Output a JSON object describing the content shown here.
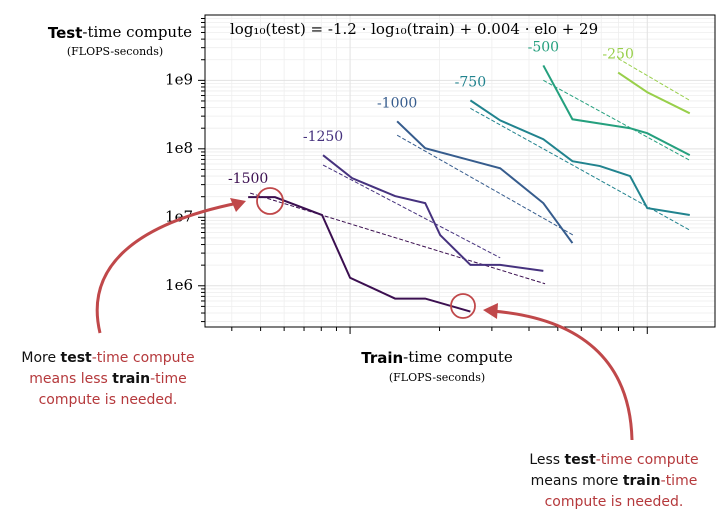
{
  "chart_data": {
    "type": "line",
    "title": "log₁₀(test) = -1.2 · log₁₀(train) + 0.004 · elo + 29",
    "x_label": [
      {
        "text": "Train",
        "style": "bold"
      },
      {
        "text": "-time compute",
        "style": "serif"
      }
    ],
    "x_unit": "(FLOPS-seconds)",
    "y_label": [
      {
        "text": "Test",
        "style": "bold"
      },
      {
        "text": "-time compute",
        "style": "serif"
      }
    ],
    "y_unit": "(FLOPS-seconds)",
    "xscale": "log",
    "yscale": "log",
    "grid": true,
    "xlim": [
      0.325,
      16.9
    ],
    "xticks": [
      1,
      10
    ],
    "ylim": [
      250000,
      9000000000
    ],
    "yticks": [
      {
        "value": 1000000,
        "label": "1e6"
      },
      {
        "value": 10000000,
        "label": "1e7"
      },
      {
        "value": 100000000,
        "label": "1e8"
      },
      {
        "value": 1000000000,
        "label": "1e9"
      }
    ],
    "series": [
      {
        "name": "-1500",
        "color": "#3b0f50",
        "x": [
          0.454,
          0.559,
          0.805,
          1,
          1.417,
          1.79,
          2.54
        ],
        "values": [
          19700000,
          19700000,
          10800000,
          1310000,
          650000,
          650000,
          420000
        ],
        "fit_x": [
          0.461,
          4.53
        ],
        "fit_values": [
          22600000,
          1070000
        ]
      },
      {
        "name": "-1250",
        "color": "#46327e",
        "x": [
          0.811,
          1.016,
          1.417,
          1.79,
          2.01,
          2.54,
          3.2,
          4.47
        ],
        "values": [
          80700000,
          37300000,
          20400000,
          16100000,
          5500000,
          2020000,
          2020000,
          1650000
        ],
        "fit_x": [
          0.811,
          3.2
        ],
        "fit_values": [
          58000000,
          2560000
        ]
      },
      {
        "name": "-1000",
        "color": "#365c8d",
        "x": [
          1.44,
          1.79,
          2.54,
          3.2,
          4.47,
          5.6
        ],
        "values": [
          252000000,
          102000000,
          68000000,
          52000000,
          16100000,
          4200000
        ],
        "fit_x": [
          1.44,
          5.63
        ],
        "fit_values": [
          158000000,
          5500000
        ]
      },
      {
        "name": "-750",
        "color": "#21838e",
        "x": [
          2.54,
          3.2,
          4.47,
          5.6,
          6.93,
          8.75,
          10,
          13.9
        ],
        "values": [
          510000000,
          260000000,
          138000000,
          66000000,
          56000000,
          40000000,
          13600000,
          10800000
        ],
        "fit_x": [
          2.54,
          13.9
        ],
        "fit_values": [
          390000000,
          6500000
        ]
      },
      {
        "name": "-500",
        "color": "#25a07e",
        "x": [
          4.47,
          5.6,
          8.75,
          10,
          13.9
        ],
        "values": [
          1650000000,
          270000000,
          200000000,
          169000000,
          81000000
        ],
        "fit_x": [
          4.47,
          13.9
        ],
        "fit_values": [
          1000000000,
          68000000
        ]
      },
      {
        "name": "-250",
        "color": "#98cf4a",
        "x": [
          7.98,
          10,
          13.9
        ],
        "values": [
          1300000000,
          670000000,
          330000000
        ],
        "fit_x": [
          7.98,
          13.9
        ],
        "fit_values": [
          2080000000,
          510000000
        ]
      }
    ],
    "annotations": [
      {
        "lines": [
          [
            {
              "text": "More ",
              "style": "plain"
            },
            {
              "text": "test",
              "style": "bold"
            },
            {
              "text": "-time compute",
              "style": "red"
            }
          ],
          [
            {
              "text": "means less ",
              "style": "red"
            },
            {
              "text": "train",
              "style": "bold"
            },
            {
              "text": "-time",
              "style": "red"
            }
          ],
          [
            {
              "text": "compute is needed.",
              "style": "red"
            }
          ]
        ]
      },
      {
        "lines": [
          [
            {
              "text": "Less ",
              "style": "plain"
            },
            {
              "text": "test",
              "style": "bold"
            },
            {
              "text": "-time compute",
              "style": "red"
            }
          ],
          [
            {
              "text": "means more ",
              "style": "plain"
            },
            {
              "text": "train",
              "style": "bold"
            },
            {
              "text": "-time",
              "style": "red"
            }
          ],
          [
            {
              "text": "compute is needed.",
              "style": "red"
            }
          ]
        ]
      }
    ]
  }
}
